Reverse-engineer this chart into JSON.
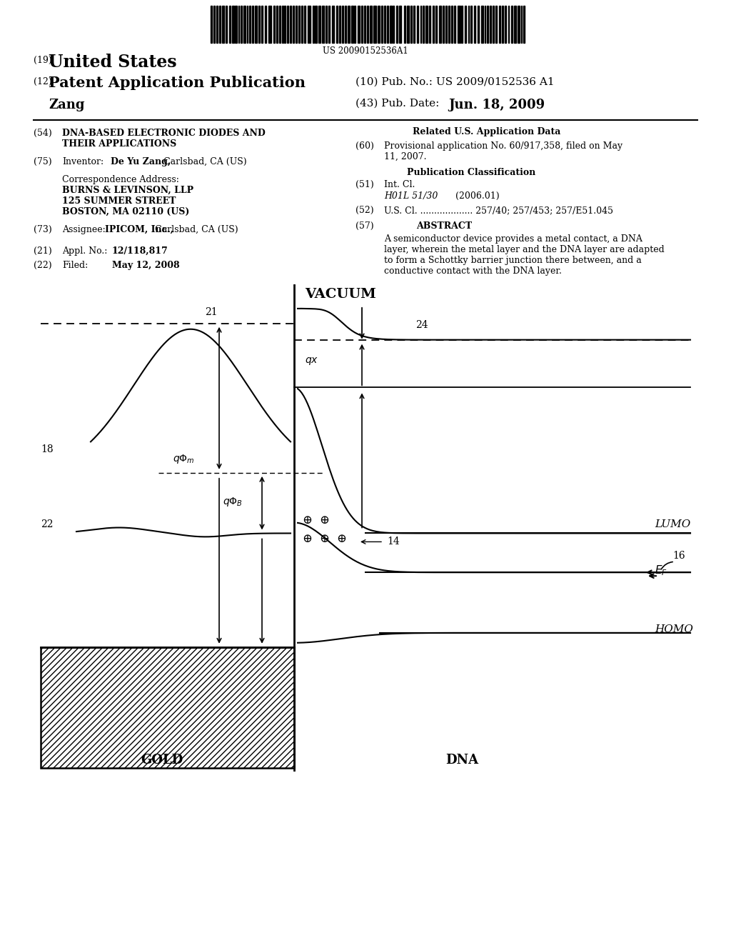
{
  "bg_color": "#ffffff",
  "barcode_text": "US 20090152536A1",
  "header_19": "(19)",
  "header_us": "United States",
  "header_12": "(12)",
  "header_pat": "Patent Application Publication",
  "header_10_label": "(10) Pub. No.: US 2009/0152536 A1",
  "header_zang": "Zang",
  "header_43_label": "(43) Pub. Date:",
  "header_date": "Jun. 18, 2009",
  "f54_label": "(54)",
  "f54_line1": "DNA-BASED ELECTRONIC DIODES AND",
  "f54_line2": "THEIR APPLICATIONS",
  "f75_label": "(75)",
  "f75_key": "Inventor:",
  "f75_name": "De Yu Zang,",
  "f75_loc": "Carlsbad, CA (US)",
  "corr_line0": "Correspondence Address:",
  "corr_line1": "BURNS & LEVINSON, LLP",
  "corr_line2": "125 SUMMER STREET",
  "corr_line3": "BOSTON, MA 02110 (US)",
  "f73_label": "(73)",
  "f73_key": "Assignee:",
  "f73_name": "IPICOM, Inc.,",
  "f73_loc": "Carlsbad, CA (US)",
  "f21_label": "(21)",
  "f21_key": "Appl. No.:",
  "f21_val": "12/118,817",
  "f22_label": "(22)",
  "f22_key": "Filed:",
  "f22_val": "May 12, 2008",
  "related_title": "Related U.S. Application Data",
  "f60_label": "(60)",
  "f60_line1": "Provisional application No. 60/917,358, filed on May",
  "f60_line2": "11, 2007.",
  "pubclass_title": "Publication Classification",
  "f51_label": "(51)",
  "f51_key": "Int. Cl.",
  "f51_italic": "H01L 51/30",
  "f51_year": "(2006.01)",
  "f52_label": "(52)",
  "f52_val": "U.S. Cl. ................... 257/40; 257/453; 257/E51.045",
  "f57_label": "(57)",
  "f57_title": "ABSTRACT",
  "f57_line1": "A semiconductor device provides a metal contact, a DNA",
  "f57_line2": "layer, wherein the metal layer and the DNA layer are adapted",
  "f57_line3": "to form a Schottky barrier junction there between, and a",
  "f57_line4": "conductive contact with the DNA layer.",
  "diag_vacuum": "VACUUM",
  "diag_gold": "GOLD",
  "diag_dna": "DNA",
  "diag_lumo": "LUMO",
  "diag_ef": "$E_F$",
  "diag_homo": "HOMO",
  "diag_qphim": "$q\\Phi_m$",
  "diag_qphib": "$q\\Phi_B$",
  "diag_qx": "$qx$",
  "diag_21": "21",
  "diag_18": "18",
  "diag_22": "22",
  "diag_24": "24",
  "diag_14": "14",
  "diag_16": "16"
}
